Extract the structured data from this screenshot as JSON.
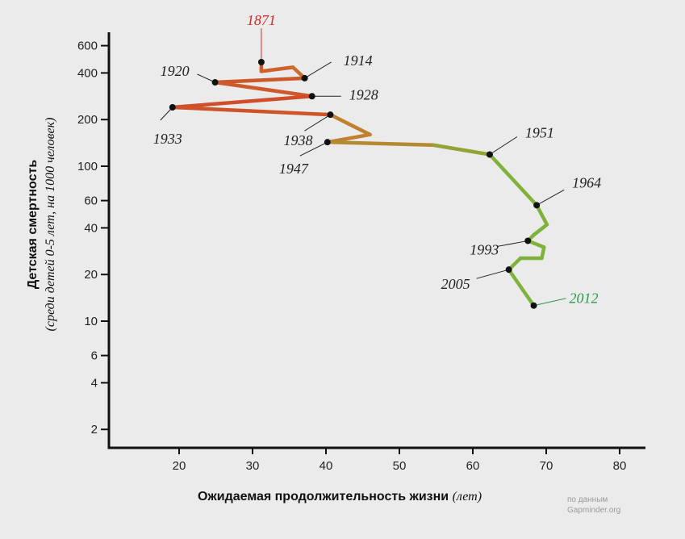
{
  "chart_data": {
    "type": "line",
    "ylabel": "Детская смертность",
    "ylabel_sub": "(среди детей 0-5 лет, на 1000 человек)",
    "xlabel": "Ожидаемая продолжительность жизни",
    "xlabel_unit": "(лет)",
    "source_line1": "по данным",
    "source_line2": "Gapminder.org",
    "x_scale": "linear",
    "y_scale": "log",
    "xlim": [
      10,
      83
    ],
    "ylim": [
      1.5,
      800
    ],
    "x_ticks": [
      20,
      30,
      40,
      50,
      60,
      70,
      80
    ],
    "y_ticks": [
      2,
      4,
      6,
      10,
      20,
      40,
      60,
      100,
      200,
      400,
      600
    ],
    "grid": false,
    "start_color": "#d62a24",
    "mid_color": "#c87a2e",
    "end_color": "#7fb23a",
    "path": [
      {
        "x": 31.2,
        "y": 470
      },
      {
        "x": 31.2,
        "y": 410
      },
      {
        "x": 35.5,
        "y": 435
      },
      {
        "x": 37.1,
        "y": 370
      },
      {
        "x": 24.9,
        "y": 348
      },
      {
        "x": 38.1,
        "y": 283
      },
      {
        "x": 19.1,
        "y": 240
      },
      {
        "x": 40.6,
        "y": 215
      },
      {
        "x": 46.0,
        "y": 160
      },
      {
        "x": 40.2,
        "y": 143
      },
      {
        "x": 54.6,
        "y": 137
      },
      {
        "x": 62.3,
        "y": 119
      },
      {
        "x": 68.7,
        "y": 56
      },
      {
        "x": 70.1,
        "y": 42
      },
      {
        "x": 68.3,
        "y": 36
      },
      {
        "x": 67.5,
        "y": 33
      },
      {
        "x": 69.7,
        "y": 30
      },
      {
        "x": 69.4,
        "y": 25.5
      },
      {
        "x": 66.5,
        "y": 25.5
      },
      {
        "x": 64.9,
        "y": 21.5
      },
      {
        "x": 68.3,
        "y": 12.6
      }
    ],
    "labeled_points": [
      {
        "year": "1871",
        "x": 31.2,
        "y": 470,
        "color": "#d62a24"
      },
      {
        "year": "1914",
        "x": 37.1,
        "y": 370
      },
      {
        "year": "1920",
        "x": 24.9,
        "y": 348
      },
      {
        "year": "1928",
        "x": 38.1,
        "y": 283
      },
      {
        "year": "1933",
        "x": 19.1,
        "y": 240
      },
      {
        "year": "1938",
        "x": 40.6,
        "y": 215
      },
      {
        "year": "1947",
        "x": 40.2,
        "y": 143
      },
      {
        "year": "1951",
        "x": 62.3,
        "y": 119
      },
      {
        "year": "1964",
        "x": 68.7,
        "y": 56
      },
      {
        "year": "1993",
        "x": 67.5,
        "y": 33
      },
      {
        "year": "2005",
        "x": 64.9,
        "y": 21.5
      },
      {
        "year": "2012",
        "x": 68.3,
        "y": 12.6,
        "color": "#2c9a4a"
      }
    ]
  }
}
